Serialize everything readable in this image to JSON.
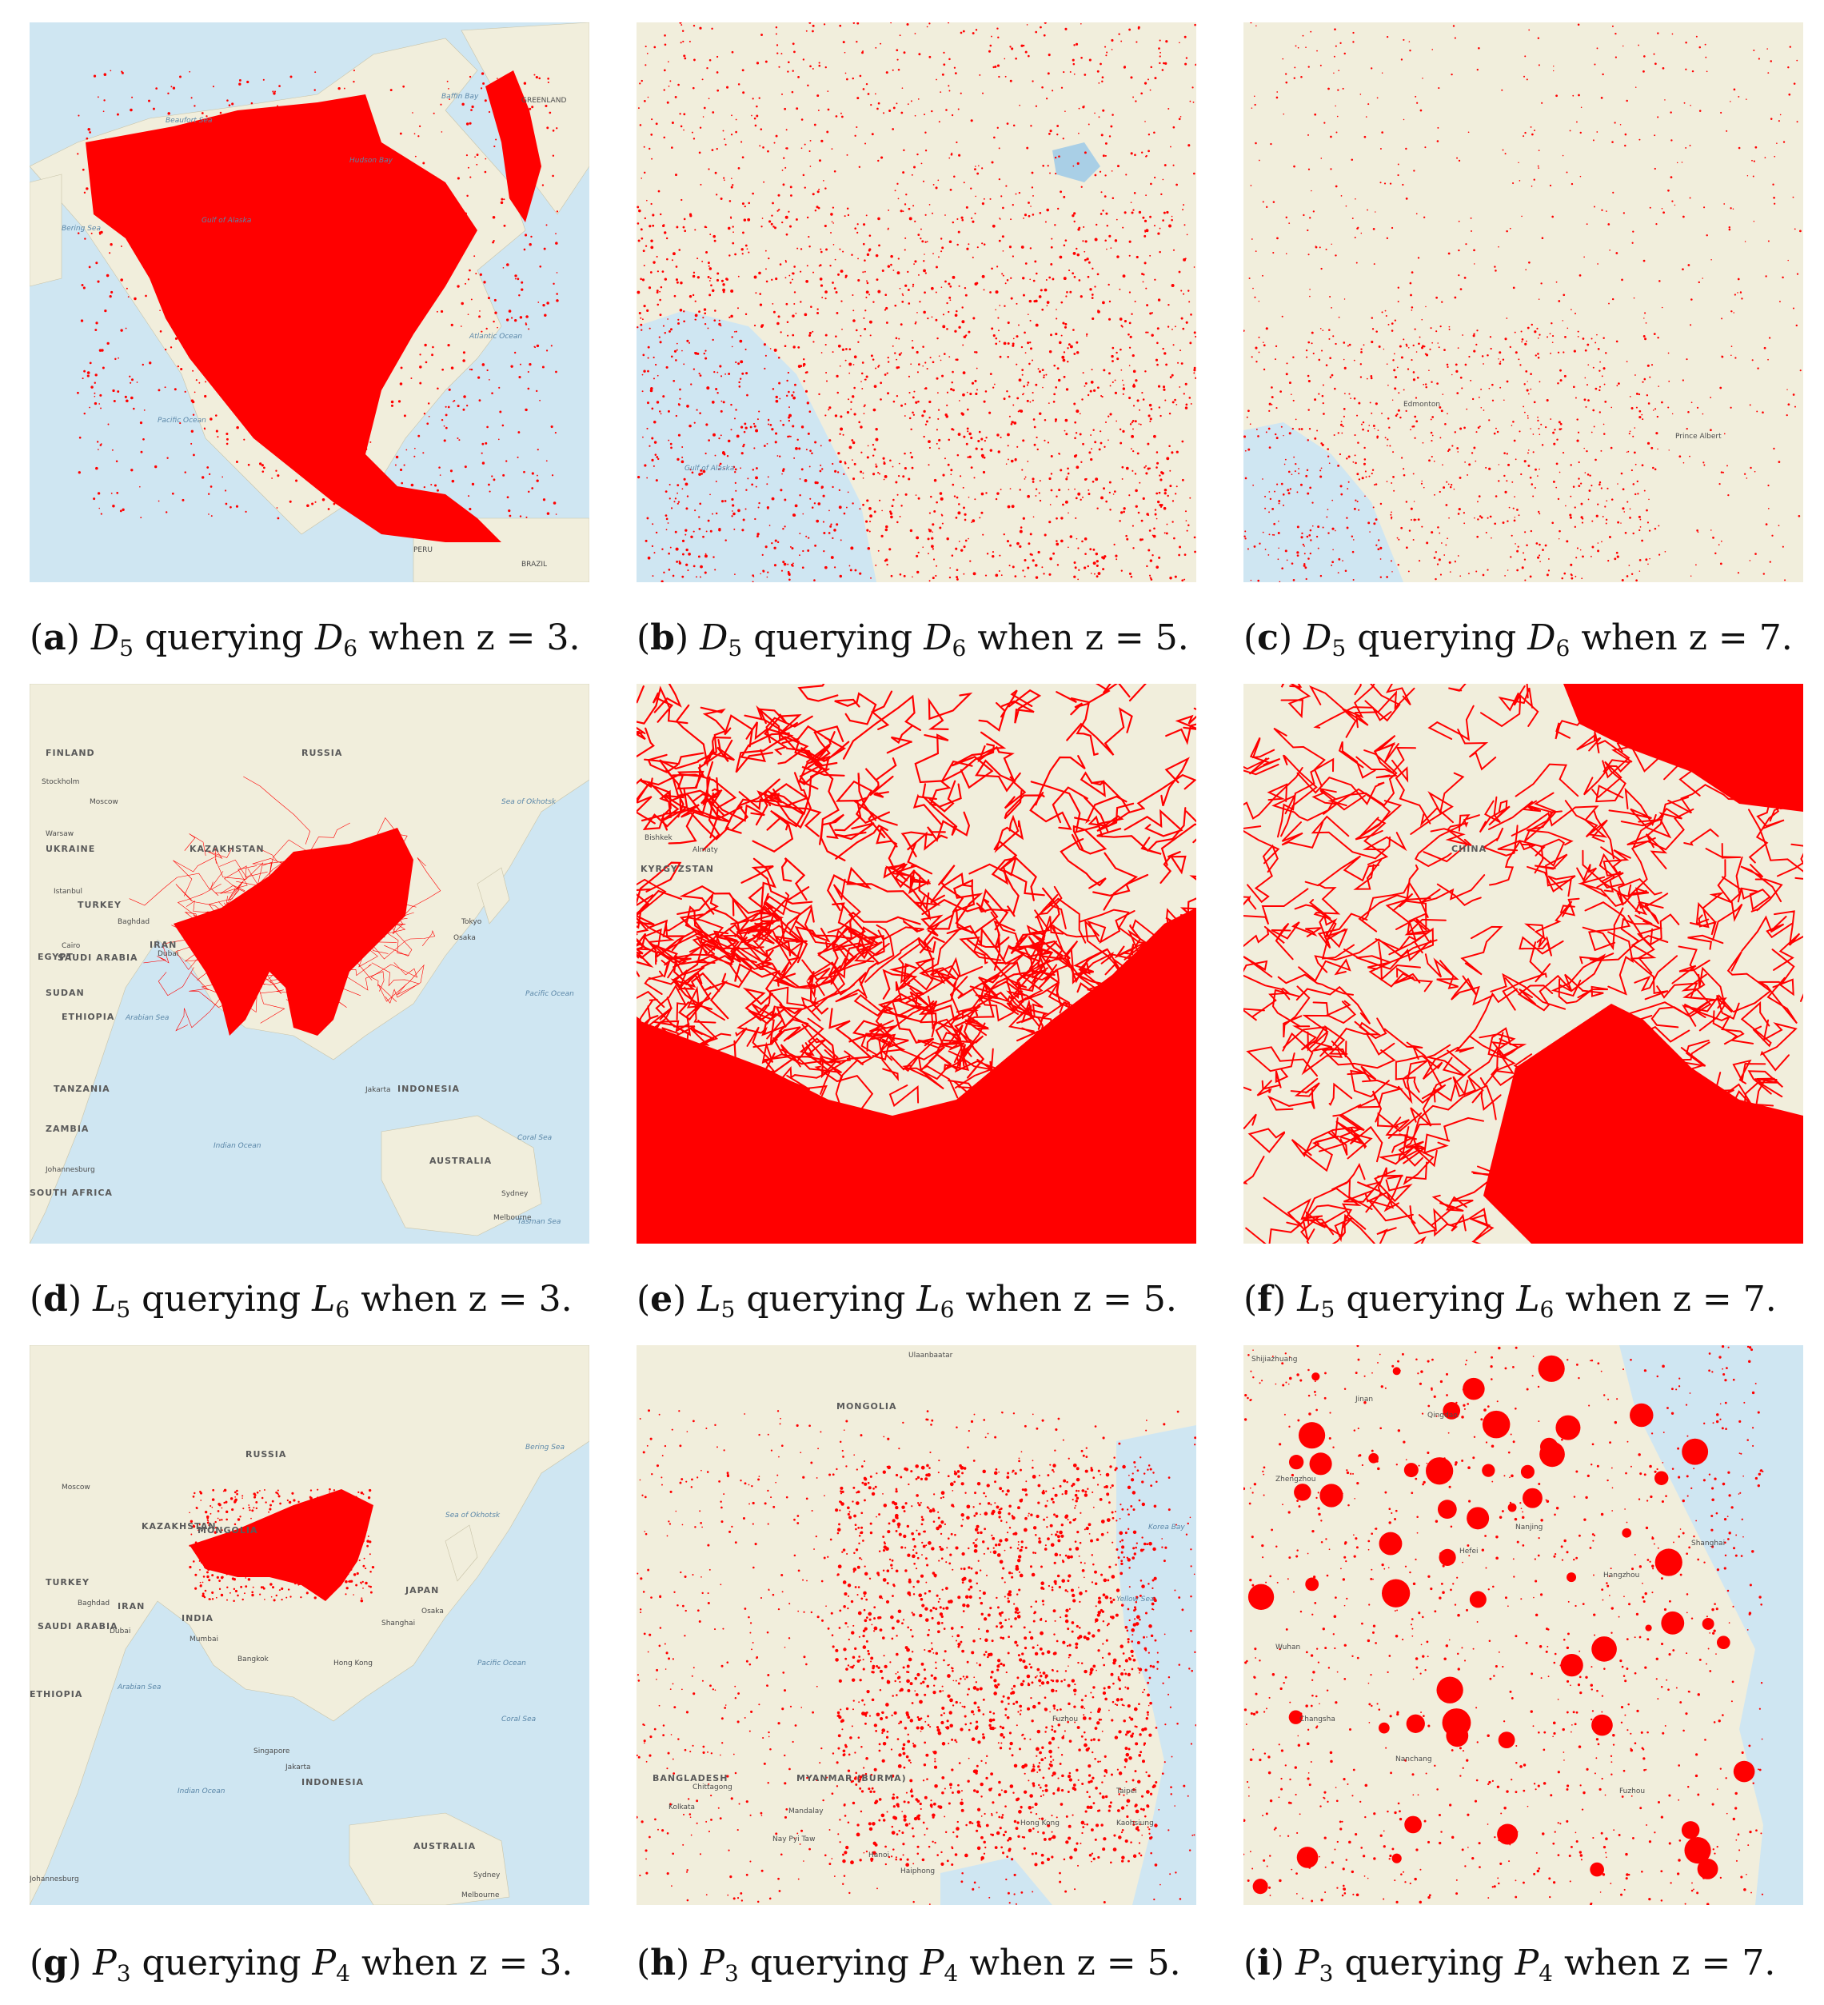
{
  "colors": {
    "ocean": "#cfe6f2",
    "land": "#f1eedc",
    "overlay": "#ff0000"
  },
  "panels": [
    {
      "letter": "a",
      "prefix": "D",
      "i": "5",
      "j": "6",
      "zoom": "3",
      "scene": "north-america-z3",
      "labels": [
        "GREENLAND",
        "Beaufort Sea",
        "Hudson Bay",
        "Bering Sea",
        "Gulf of Alaska",
        "Atlantic Ocean",
        "Pacific Ocean",
        "PERU",
        "BRAZIL",
        "Baffin Bay"
      ]
    },
    {
      "letter": "b",
      "prefix": "D",
      "i": "5",
      "j": "6",
      "zoom": "5",
      "scene": "west-canada-z5",
      "labels": [
        "Gulf of Alaska"
      ]
    },
    {
      "letter": "c",
      "prefix": "D",
      "i": "5",
      "j": "6",
      "zoom": "7",
      "scene": "alberta-z7",
      "labels": [
        "Edmonton",
        "Prince Albert"
      ]
    },
    {
      "letter": "d",
      "prefix": "L",
      "i": "5",
      "j": "6",
      "zoom": "3",
      "scene": "asia-lines-z3",
      "labels": [
        "RUSSIA",
        "FINLAND",
        "Stockholm",
        "Moscow",
        "Warsaw",
        "UKRAINE",
        "KAZAKHSTAN",
        "Istanbul",
        "TURKEY",
        "Baghdad",
        "IRAN",
        "Cairo",
        "EGYPT",
        "SAUDI ARABIA",
        "Dubai",
        "SUDAN",
        "ETHIOPIA",
        "TANZANIA",
        "ZAMBIA",
        "Johannesburg",
        "Arabian Sea",
        "Indian Ocean",
        "Tokyo",
        "Osaka",
        "Pacific Ocean",
        "Sea of Okhotsk",
        "Jakarta",
        "INDONESIA",
        "AUSTRALIA",
        "Sydney",
        "Melbourne",
        "Tasman Sea",
        "Coral Sea",
        "SOUTH AFRICA"
      ]
    },
    {
      "letter": "e",
      "prefix": "L",
      "i": "5",
      "j": "6",
      "zoom": "5",
      "scene": "china-lines-z5",
      "labels": [
        "Bishkek",
        "Almaty",
        "KYRGYZSTAN"
      ]
    },
    {
      "letter": "f",
      "prefix": "L",
      "i": "5",
      "j": "6",
      "zoom": "7",
      "scene": "china-lines-z7",
      "labels": [
        "CHINA"
      ]
    },
    {
      "letter": "g",
      "prefix": "P",
      "i": "3",
      "j": "4",
      "zoom": "3",
      "scene": "asia-points-z3",
      "labels": [
        "RUSSIA",
        "Moscow",
        "KAZAKHSTAN",
        "MONGOLIA",
        "TURKEY",
        "Baghdad",
        "IRAN",
        "SAUDI ARABIA",
        "Dubai",
        "ETHIOPIA",
        "Arabian Sea",
        "INDIA",
        "Mumbai",
        "Bangkok",
        "Singapore",
        "Jakarta",
        "INDONESIA",
        "Indian Ocean",
        "AUSTRALIA",
        "Sydney",
        "Melbourne",
        "Shanghai",
        "JAPAN",
        "Osaka",
        "Pacific Ocean",
        "Sea of Okhotsk",
        "Bering Sea",
        "Hong Kong",
        "Johannesburg",
        "Coral Sea"
      ]
    },
    {
      "letter": "h",
      "prefix": "P",
      "i": "3",
      "j": "4",
      "zoom": "5",
      "scene": "china-points-z5",
      "labels": [
        "MONGOLIA",
        "Ulaanbaatar",
        "BANGLADESH",
        "Kolkata",
        "Chittagong",
        "MYANMAR (BURMA)",
        "Mandalay",
        "Nay Pyi Taw",
        "Hanoi",
        "Haiphong",
        "Hong Kong",
        "Taipei",
        "Kaohsiung",
        "Yellow Sea",
        "Korea Bay",
        "Fuzhou"
      ]
    },
    {
      "letter": "i",
      "prefix": "P",
      "i": "3",
      "j": "4",
      "zoom": "7",
      "scene": "east-china-points-z7",
      "labels": [
        "Shijiazhuang",
        "Jinan",
        "Qingdao",
        "Zhengzhou",
        "Hefei",
        "Nanjing",
        "Shanghai",
        "Hangzhou",
        "Wuhan",
        "Changsha",
        "Nanchang",
        "Fuzhou"
      ]
    }
  ],
  "caption_words": {
    "querying": "querying",
    "when": "when z ="
  }
}
